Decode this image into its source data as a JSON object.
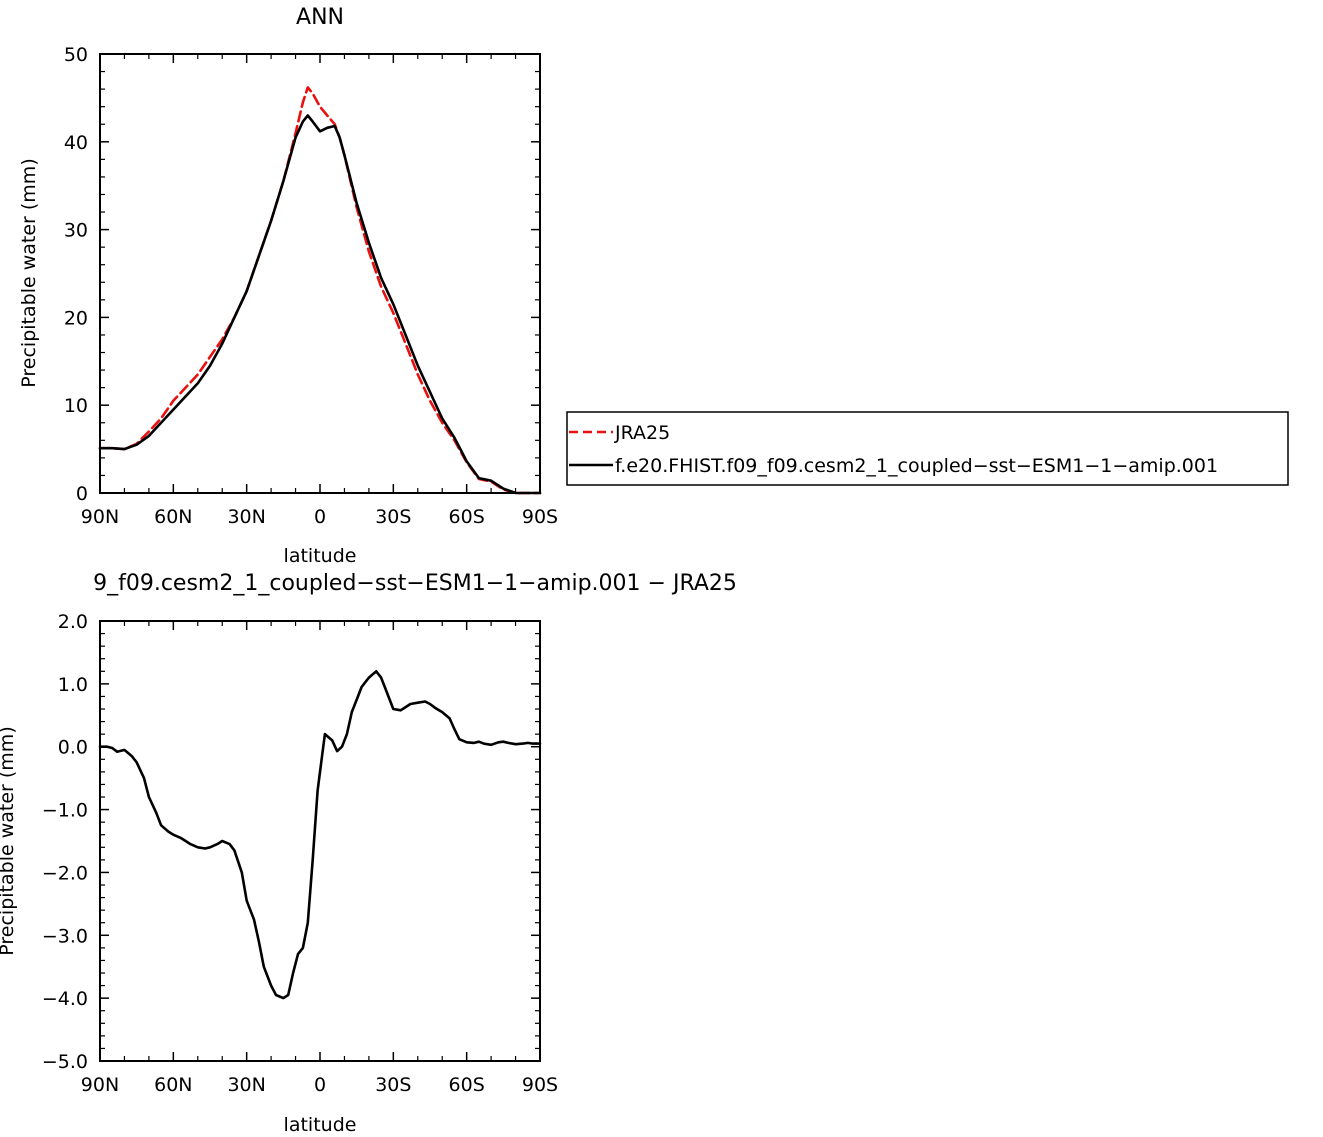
{
  "chart_data": [
    {
      "type": "line",
      "title": "ANN",
      "xlabel": "latitude",
      "ylabel": "Precipitable water  (mm)",
      "xlim": [
        -90,
        90
      ],
      "ylim": [
        0,
        50
      ],
      "x_tick_values": [
        -90,
        -60,
        -30,
        0,
        30,
        60,
        90
      ],
      "x_tick_labels": [
        "90N",
        "60N",
        "30N",
        "0",
        "30S",
        "60S",
        "90S"
      ],
      "y_tick_values": [
        0,
        10,
        20,
        30,
        40,
        50
      ],
      "y_tick_labels": [
        "0",
        "10",
        "20",
        "30",
        "40",
        "50"
      ],
      "legend_position": "right",
      "series": [
        {
          "name": "JRA25",
          "color": "#e8110f",
          "dash": "dashed",
          "x": [
            -90,
            -85,
            -80,
            -75,
            -70,
            -65,
            -60,
            -55,
            -50,
            -45,
            -40,
            -35,
            -30,
            -25,
            -20,
            -15,
            -10,
            -7,
            -5,
            -3,
            0,
            3,
            6,
            8,
            10,
            15,
            20,
            25,
            30,
            35,
            40,
            45,
            50,
            55,
            60,
            65,
            70,
            75,
            80,
            85,
            90
          ],
          "y": [
            5.1,
            5.1,
            5.0,
            5.6,
            7.0,
            8.5,
            10.5,
            12.0,
            13.5,
            15.5,
            17.5,
            20.0,
            23.0,
            27.0,
            31.0,
            35.5,
            41.0,
            44.5,
            46.2,
            45.5,
            44.0,
            43.0,
            42.0,
            40.5,
            38.5,
            32.5,
            27.5,
            23.5,
            20.5,
            17.0,
            13.5,
            10.5,
            8.0,
            6.0,
            3.5,
            1.6,
            1.3,
            0.4,
            0.0,
            0.0,
            0.0
          ]
        },
        {
          "name": "f.e20.FHIST.f09_f09.cesm2_1_coupled−sst−ESM1−1−amip.001",
          "color": "#000000",
          "dash": "solid",
          "x": [
            -90,
            -85,
            -80,
            -75,
            -70,
            -65,
            -60,
            -55,
            -50,
            -45,
            -40,
            -35,
            -30,
            -25,
            -20,
            -15,
            -10,
            -7,
            -5,
            -3,
            0,
            3,
            6,
            8,
            10,
            15,
            20,
            25,
            30,
            35,
            40,
            45,
            50,
            55,
            60,
            65,
            70,
            75,
            80,
            85,
            90
          ],
          "y": [
            5.1,
            5.1,
            5.0,
            5.5,
            6.5,
            8.0,
            9.5,
            11.0,
            12.5,
            14.5,
            17.0,
            20.0,
            23.0,
            27.0,
            31.0,
            35.5,
            40.5,
            42.3,
            43.0,
            42.3,
            41.2,
            41.6,
            41.8,
            40.5,
            38.5,
            33.0,
            28.5,
            24.5,
            21.5,
            18.0,
            14.5,
            11.5,
            8.5,
            6.3,
            3.6,
            1.7,
            1.4,
            0.5,
            0.0,
            0.0,
            0.0
          ]
        }
      ]
    },
    {
      "type": "line",
      "title": "9_f09.cesm2_1_coupled−sst−ESM1−1−amip.001  −  JRA25",
      "xlabel": "latitude",
      "ylabel": "Precipitable water  (mm)",
      "xlim": [
        -90,
        90
      ],
      "ylim": [
        -5,
        2
      ],
      "x_tick_values": [
        -90,
        -60,
        -30,
        0,
        30,
        60,
        90
      ],
      "x_tick_labels": [
        "90N",
        "60N",
        "30N",
        "0",
        "30S",
        "60S",
        "90S"
      ],
      "y_tick_values": [
        2,
        1,
        0,
        -1,
        -2,
        -3,
        -4,
        -5
      ],
      "y_tick_labels": [
        "2.0",
        "1.0",
        "0.0",
        "−1.0",
        "−2.0",
        "−3.0",
        "−4.0",
        "−5.0"
      ],
      "series": [
        {
          "color": "#000000",
          "dash": "solid",
          "x": [
            -90,
            -87,
            -85,
            -83,
            -80,
            -77,
            -75,
            -72,
            -70,
            -67,
            -65,
            -62,
            -60,
            -57,
            -55,
            -53,
            -50,
            -47,
            -45,
            -42,
            -40,
            -37,
            -35,
            -32,
            -30,
            -27,
            -25,
            -23,
            -20,
            -18,
            -15,
            -13,
            -11,
            -9,
            -7,
            -5,
            -3,
            -1,
            0,
            2,
            5,
            7,
            9,
            11,
            13,
            15,
            17,
            20,
            23,
            25,
            27,
            30,
            33,
            35,
            37,
            40,
            43,
            45,
            47,
            50,
            53,
            55,
            57,
            60,
            63,
            65,
            67,
            70,
            73,
            75,
            77,
            80,
            83,
            85,
            87,
            90
          ],
          "y": [
            0.0,
            0.0,
            -0.02,
            -0.08,
            -0.05,
            -0.15,
            -0.25,
            -0.5,
            -0.8,
            -1.05,
            -1.25,
            -1.35,
            -1.4,
            -1.45,
            -1.5,
            -1.55,
            -1.6,
            -1.62,
            -1.6,
            -1.55,
            -1.5,
            -1.55,
            -1.65,
            -2.0,
            -2.45,
            -2.75,
            -3.1,
            -3.5,
            -3.8,
            -3.95,
            -4.0,
            -3.95,
            -3.6,
            -3.3,
            -3.2,
            -2.8,
            -1.8,
            -0.7,
            -0.4,
            0.2,
            0.1,
            -0.07,
            0.0,
            0.2,
            0.55,
            0.75,
            0.95,
            1.1,
            1.2,
            1.1,
            0.9,
            0.6,
            0.58,
            0.63,
            0.68,
            0.7,
            0.72,
            0.68,
            0.62,
            0.55,
            0.45,
            0.28,
            0.12,
            0.07,
            0.06,
            0.08,
            0.05,
            0.03,
            0.07,
            0.08,
            0.06,
            0.04,
            0.05,
            0.06,
            0.05,
            0.05
          ]
        }
      ]
    }
  ]
}
